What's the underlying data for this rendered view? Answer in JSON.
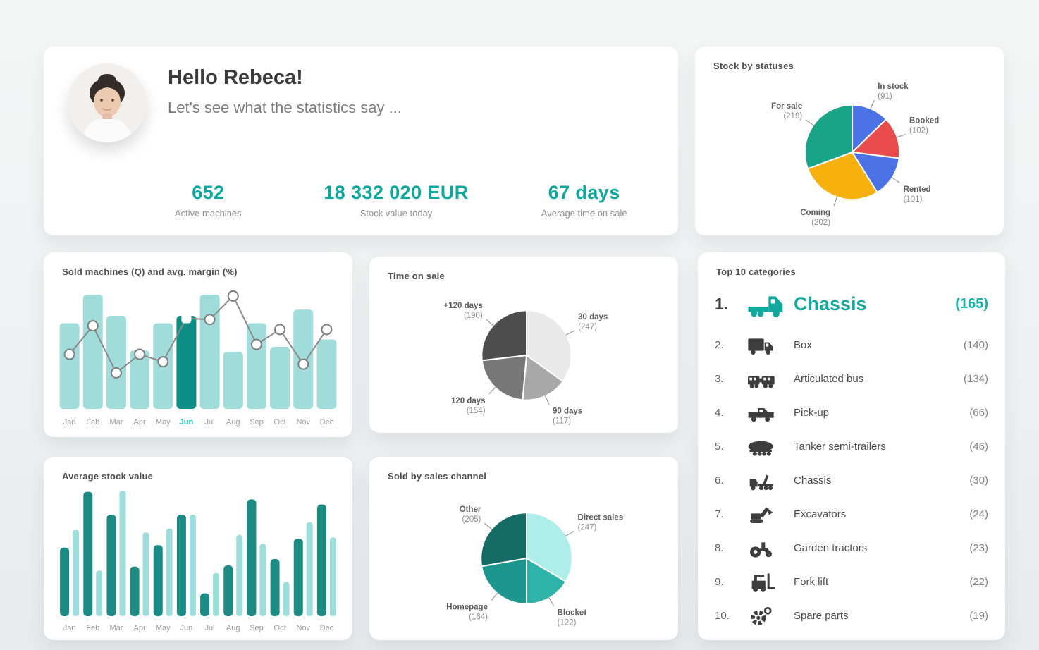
{
  "accent_color": "#0ca69e",
  "greeting": {
    "title": "Hello Rebeca!",
    "subtitle": "Let's see what the statistics say ...",
    "stats": [
      {
        "value": "652",
        "label": "Active machines"
      },
      {
        "value": "18 332 020 EUR",
        "label": "Stock value today"
      },
      {
        "value": "67 days",
        "label": "Average time on sale"
      }
    ]
  },
  "top_categories": {
    "title": "Top 10 categories",
    "items": [
      {
        "rank": "1.",
        "icon": "semi-truck-icon",
        "label": "Chassis",
        "count": "(165)",
        "highlight": true
      },
      {
        "rank": "2.",
        "icon": "box-truck-icon",
        "label": "Box",
        "count": "(140)",
        "highlight": false
      },
      {
        "rank": "3.",
        "icon": "articulated-bus-icon",
        "label": "Articulated bus",
        "count": "(134)",
        "highlight": false
      },
      {
        "rank": "4.",
        "icon": "pickup-icon",
        "label": "Pick-up",
        "count": "(66)",
        "highlight": false
      },
      {
        "rank": "5.",
        "icon": "tanker-icon",
        "label": "Tanker semi-trailers",
        "count": "(46)",
        "highlight": false
      },
      {
        "rank": "6.",
        "icon": "chassis-truck-icon",
        "label": "Chassis",
        "count": "(30)",
        "highlight": false
      },
      {
        "rank": "7.",
        "icon": "excavator-icon",
        "label": "Excavators",
        "count": "(24)",
        "highlight": false
      },
      {
        "rank": "8.",
        "icon": "garden-tractor-icon",
        "label": "Garden tractors",
        "count": "(23)",
        "highlight": false
      },
      {
        "rank": "9.",
        "icon": "forklift-icon",
        "label": "Fork lift",
        "count": "(22)",
        "highlight": false
      },
      {
        "rank": "10.",
        "icon": "spare-parts-icon",
        "label": "Spare parts",
        "count": "(19)",
        "highlight": false
      }
    ]
  },
  "chart_data": [
    {
      "id": "sold_machines",
      "type": "combo-bar-line",
      "title": "Sold machines (Q) and avg. margin (%)",
      "categories": [
        "Jan",
        "Feb",
        "Mar",
        "Apr",
        "May",
        "Jun",
        "Jul",
        "Aug",
        "Sep",
        "Oct",
        "Nov",
        "Dec"
      ],
      "highlight_category": "Jun",
      "ylim": [
        0,
        100
      ],
      "grid": false,
      "legend": "none",
      "series": [
        {
          "name": "Sold machines (Q)",
          "type": "bar",
          "values": [
            69,
            92,
            75,
            47,
            69,
            75,
            92,
            46,
            69,
            50,
            80,
            56
          ]
        },
        {
          "name": "Avg. margin (%)",
          "type": "line",
          "values": [
            44,
            67,
            29,
            44,
            38,
            73,
            72,
            91,
            52,
            64,
            36,
            64
          ]
        }
      ],
      "colors": {
        "bar": "#9fdcda",
        "bar_highlight": "#0e8d85",
        "line": "#8a8a8a",
        "highlight_label": "#16b3ab"
      }
    },
    {
      "id": "stock_by_statuses",
      "type": "pie",
      "title": "Stock by statuses",
      "legend": "callout-labels",
      "slices": [
        {
          "label": "In stock",
          "value": 91,
          "color": "#4b73e6"
        },
        {
          "label": "Booked",
          "value": 102,
          "color": "#e84c4c"
        },
        {
          "label": "Rented",
          "value": 101,
          "color": "#4b73e6"
        },
        {
          "label": "Coming",
          "value": 202,
          "color": "#f6b10f"
        },
        {
          "label": "For sale",
          "value": 219,
          "color": "#17a487"
        }
      ]
    },
    {
      "id": "time_on_sale",
      "type": "pie",
      "title": "Time on sale",
      "legend": "callout-labels",
      "slices": [
        {
          "label": "30 days",
          "value": 247,
          "color": "#e9e9e9"
        },
        {
          "label": "90 days",
          "value": 117,
          "color": "#a8a8a8"
        },
        {
          "label": "120 days",
          "value": 154,
          "color": "#787878"
        },
        {
          "label": "+120 days",
          "value": 190,
          "color": "#4d4d4d"
        }
      ]
    },
    {
      "id": "average_stock_value",
      "type": "grouped-bar",
      "title": "Average stock value",
      "categories": [
        "Jan",
        "Feb",
        "Mar",
        "Apr",
        "May",
        "Jun",
        "Jul",
        "Aug",
        "Sep",
        "Oct",
        "Nov",
        "Dec"
      ],
      "ylim": [
        0,
        100
      ],
      "grid": false,
      "legend": "none",
      "series": [
        {
          "name": "series-1",
          "color": "#1b8b83",
          "values": [
            54,
            98,
            80,
            39,
            56,
            80,
            18,
            40,
            92,
            45,
            61,
            88
          ]
        },
        {
          "name": "series-2",
          "color": "#9ededa",
          "values": [
            68,
            36,
            99,
            66,
            69,
            80,
            34,
            64,
            57,
            27,
            74,
            62
          ]
        }
      ]
    },
    {
      "id": "sold_by_sales_channel",
      "type": "pie",
      "title": "Sold by sales channel",
      "legend": "callout-labels",
      "slices": [
        {
          "label": "Direct sales",
          "value": 247,
          "color": "#aeeeea"
        },
        {
          "label": "Blocket",
          "value": 122,
          "color": "#2fb3a9"
        },
        {
          "label": "Homepage",
          "value": 164,
          "color": "#1d978d"
        },
        {
          "label": "Other",
          "value": 205,
          "color": "#156b66"
        }
      ]
    }
  ]
}
